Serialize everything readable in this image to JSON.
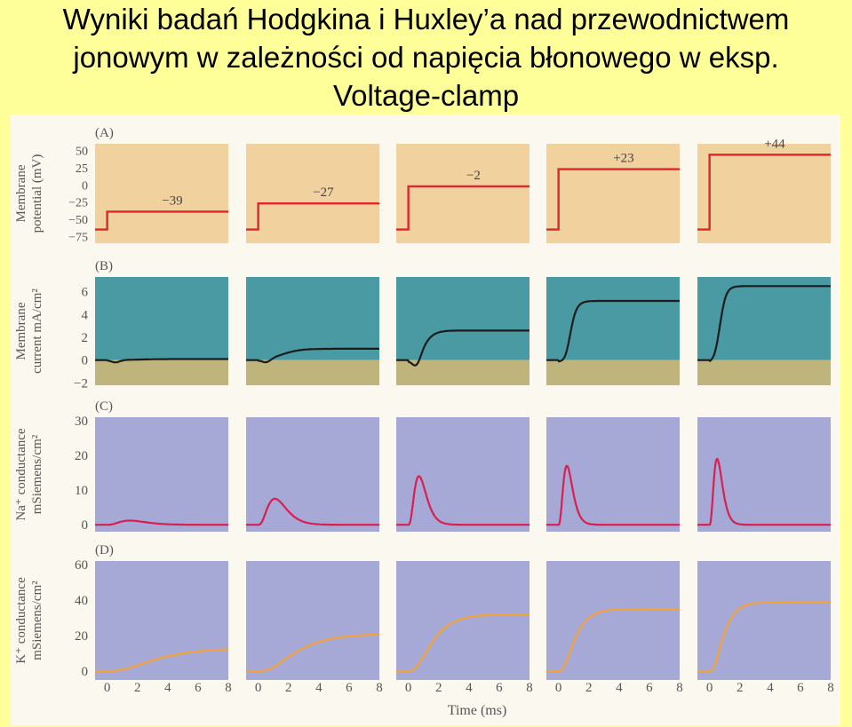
{
  "title": {
    "line1": "Wyniki badań Hodgkina i Huxley’a nad przewodnictwem",
    "line2": "jonowym w zależności od napięcia błonowego w eksp.",
    "line3": "Voltage-clamp"
  },
  "colors": {
    "page_background": "#ffff99",
    "membrane_potential_panel": "#f1d19e",
    "current_panel_positive": "#4a9aa3",
    "current_panel_negative": "#bfb57c",
    "conductance_panel": "#a6a9d6",
    "potential_trace": "#e0252d",
    "current_trace": "#1c1c1c",
    "na_trace": "#d91e52",
    "k_trace": "#f3a23b"
  },
  "chart_data": {
    "type": "line",
    "xlabel": "Time (ms)",
    "x_ticks": [
      "0",
      "2",
      "4",
      "6",
      "8"
    ],
    "columns": [
      "−39",
      "−27",
      "−2",
      "+23",
      "+44"
    ],
    "clamp_potentials_mV": [
      -39,
      -27,
      -2,
      23,
      44
    ],
    "rows": [
      {
        "id": "A",
        "label": "(A)",
        "ylabel_line1": "Membrane",
        "ylabel_line2": "potential (mV)",
        "y_ticks": [
          "50",
          "25",
          "0",
          "−25",
          "−50",
          "−75"
        ],
        "ylim": [
          -85,
          60
        ]
      },
      {
        "id": "B",
        "label": "(B)",
        "ylabel_line1": "Membrane",
        "ylabel_line2": "current mA/cm²",
        "y_ticks": [
          "6",
          "4",
          "2",
          "0",
          "−2"
        ],
        "ylim": [
          -2.2,
          7.3
        ],
        "early_inward_peak": [
          -0.2,
          -0.3,
          -0.9,
          -0.8,
          -0.6
        ],
        "steady_state": [
          0.1,
          1.0,
          2.6,
          5.2,
          6.5
        ]
      },
      {
        "id": "C",
        "label": "(C)",
        "ylabel_line1": "Na⁺ conductance",
        "ylabel_line2": "mSiemens/cm²",
        "y_ticks": [
          "30",
          "20",
          "10",
          "0"
        ],
        "ylim": [
          -2,
          31
        ],
        "peak": [
          1.2,
          7.5,
          14,
          17,
          19
        ],
        "peak_time_ms": [
          1.5,
          1.1,
          0.7,
          0.55,
          0.5
        ]
      },
      {
        "id": "D",
        "label": "(D)",
        "ylabel_line1": "K⁺ conductance",
        "ylabel_line2": "mSiemens/cm²",
        "y_ticks": [
          "60",
          "40",
          "20",
          "0"
        ],
        "ylim": [
          -5,
          62
        ],
        "steady_state": [
          13,
          21,
          32,
          35,
          39
        ],
        "rise_time_ms": [
          4.5,
          3.5,
          2.2,
          1.5,
          1.3
        ]
      }
    ],
    "xlim": [
      -0.8,
      8
    ]
  }
}
